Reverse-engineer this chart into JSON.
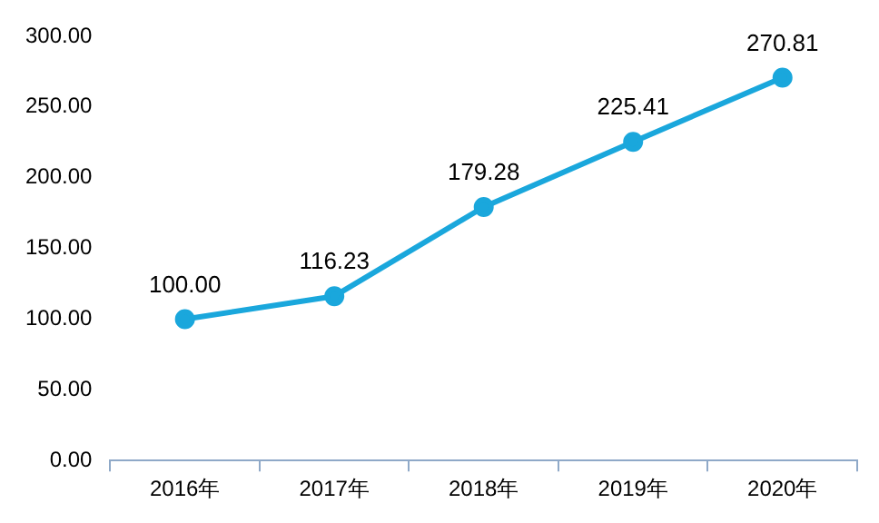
{
  "chart_data": {
    "type": "line",
    "categories": [
      "2016年",
      "2017年",
      "2018年",
      "2019年",
      "2020年"
    ],
    "series": [
      {
        "color": "#1aa7dc",
        "values": [
          100.0,
          116.23,
          179.28,
          225.41,
          270.81
        ],
        "value_labels": [
          "100.00",
          "116.23",
          "179.28",
          "225.41",
          "270.81"
        ]
      }
    ],
    "ylim": [
      0,
      300
    ],
    "yticks": [
      {
        "value": 0,
        "label": "0.00"
      },
      {
        "value": 50,
        "label": "50.00"
      },
      {
        "value": 100,
        "label": "100.00"
      },
      {
        "value": 150,
        "label": "150.00"
      },
      {
        "value": 200,
        "label": "200.00"
      },
      {
        "value": 250,
        "label": "250.00"
      },
      {
        "value": 300,
        "label": "300.00"
      }
    ],
    "marker": "circle",
    "line_style": "solid",
    "grid": false,
    "legend": false
  }
}
